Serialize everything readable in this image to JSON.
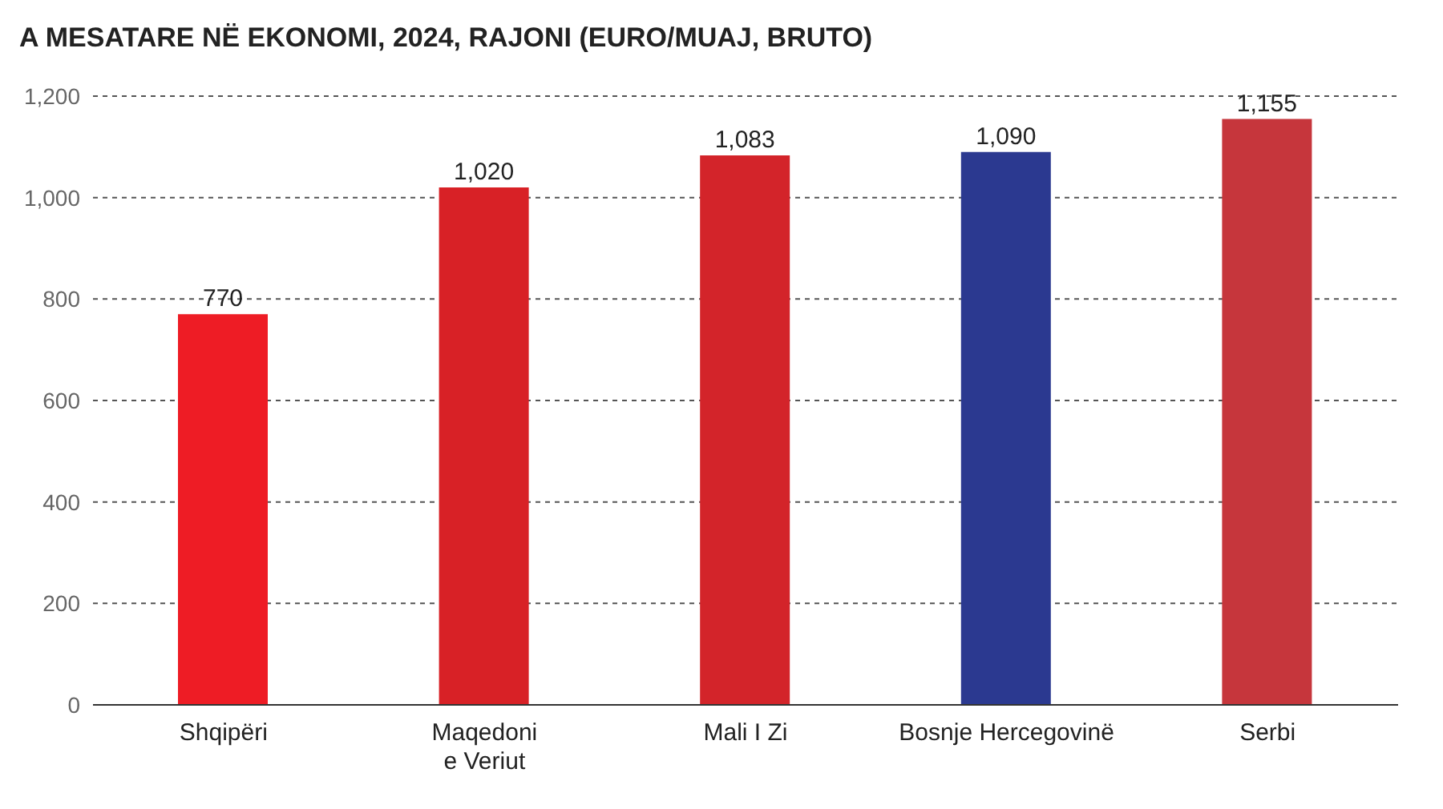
{
  "chart_data": {
    "type": "bar",
    "title": "A MESATARE NË EKONOMI, 2024, RAJONI (EURO/MUAJ, BRUTO)",
    "categories": [
      "Shqipëri",
      "Maqedoni\ne Veriut",
      "Mali I Zi",
      "Bosnje Hercegovinë",
      "Serbi"
    ],
    "values": [
      770,
      1020,
      1083,
      1090,
      1155
    ],
    "value_labels": [
      "770",
      "1,020",
      "1,083",
      "1,090",
      "1,155"
    ],
    "colors": [
      "#ee1c25",
      "#d82126",
      "#d3242a",
      "#2b3990",
      "#c6363c"
    ],
    "ylim": [
      0,
      1200
    ],
    "yticks": [
      0,
      200,
      400,
      600,
      800,
      {
        "value": 1000,
        "label": "1,000"
      },
      {
        "value": 1200,
        "label": "1,200"
      }
    ],
    "grid": "y"
  }
}
